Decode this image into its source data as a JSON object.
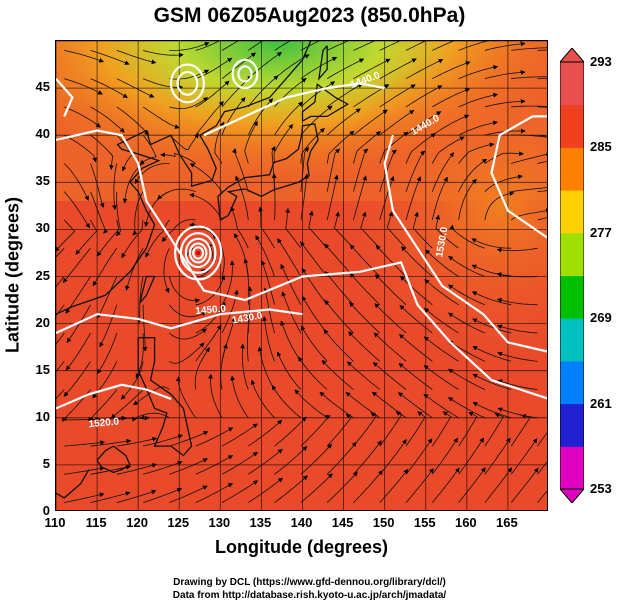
{
  "title": "GSM 06Z05Aug2023 (850.0hPa)",
  "axes": {
    "xlabel": "Longitude (degrees)",
    "ylabel": "Latitude (degrees)",
    "xticks": [
      "110",
      "115",
      "120",
      "125",
      "130",
      "135",
      "140",
      "145",
      "150",
      "155",
      "160",
      "165"
    ],
    "yticks": [
      "0",
      "5",
      "10",
      "15",
      "20",
      "25",
      "30",
      "35",
      "40",
      "45"
    ],
    "xlim": [
      110,
      170
    ],
    "ylim": [
      0,
      50
    ]
  },
  "colorbar": {
    "ticks": [
      "293",
      "285",
      "277",
      "269",
      "261",
      "253"
    ],
    "range": [
      253,
      293
    ],
    "colors": [
      "#e000c0",
      "#2020d0",
      "#0080ff",
      "#00c0c0",
      "#00c000",
      "#a0e000",
      "#ffd000",
      "#ff8000",
      "#f04020",
      "#e85050"
    ]
  },
  "contour_labels": [
    "1440.0",
    "1440.0",
    "1450.0",
    "1430.0",
    "1520.0",
    "1530.0"
  ],
  "typhoon_center": {
    "lon": 127.3,
    "lat": 27.5
  },
  "credits": {
    "line1": "Drawing by DCL (https://www.gfd-dennou.org/library/dcl/)",
    "line2": "Data from http://database.rish.kyoto-u.ac.jp/arch/jmadata/"
  }
}
